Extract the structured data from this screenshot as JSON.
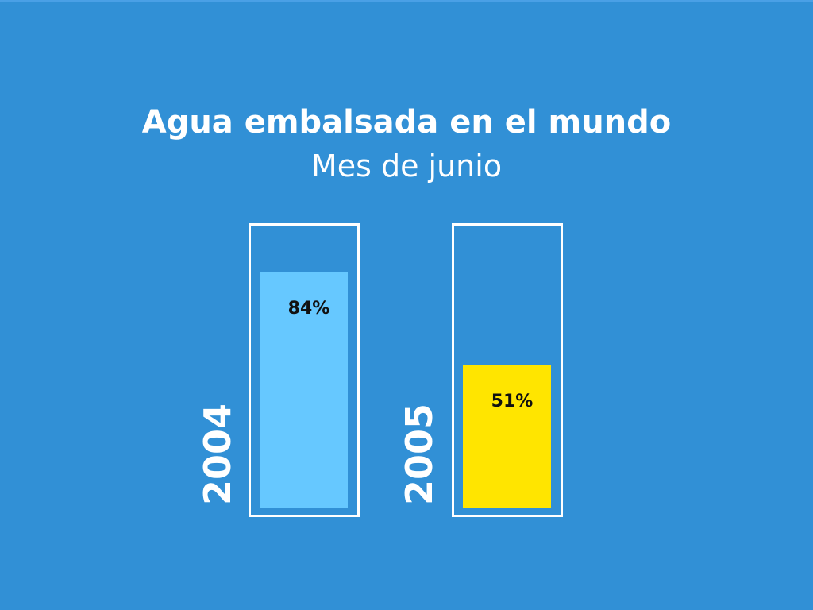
{
  "chart_data": {
    "type": "bar",
    "title": "Agua embalsada en el mundo",
    "subtitle": "Mes de junio",
    "categories": [
      "2004",
      "2005"
    ],
    "values": [
      84,
      51
    ],
    "value_labels": [
      "84%",
      "51%"
    ],
    "ylim": [
      0,
      100
    ],
    "colors": [
      "#66c8ff",
      "#ffe500"
    ],
    "frame_color": "#ffffff",
    "background": "#3190d6"
  }
}
